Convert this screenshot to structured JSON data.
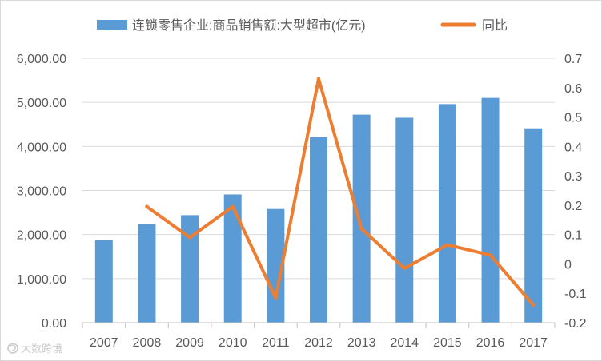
{
  "chart_data": {
    "type": "bar",
    "categories": [
      "2007",
      "2008",
      "2009",
      "2010",
      "2011",
      "2012",
      "2013",
      "2014",
      "2015",
      "2016",
      "2017"
    ],
    "series": [
      {
        "name": "连锁零售企业:商品销售额:大型超市(亿元)",
        "type": "bar",
        "axis": "left",
        "color": "#5b9bd5",
        "values": [
          1870,
          2240,
          2440,
          2910,
          2580,
          4210,
          4720,
          4650,
          4960,
          5100,
          4410
        ]
      },
      {
        "name": "同比",
        "type": "line",
        "axis": "right",
        "color": "#ed7d31",
        "values": [
          null,
          0.195,
          0.09,
          0.195,
          -0.115,
          0.63,
          0.12,
          -0.015,
          0.065,
          0.03,
          -0.14
        ]
      }
    ],
    "y_left": {
      "ylim": [
        0,
        6000
      ],
      "ticks": [
        0,
        1000,
        2000,
        3000,
        4000,
        5000,
        6000
      ],
      "tick_labels": [
        "0.00",
        "1,000.00",
        "2,000.00",
        "3,000.00",
        "4,000.00",
        "5,000.00",
        "6,000.00"
      ]
    },
    "y_right": {
      "ylim": [
        -0.2,
        0.7
      ],
      "ticks": [
        -0.2,
        -0.1,
        0,
        0.1,
        0.2,
        0.3,
        0.4,
        0.5,
        0.6,
        0.7
      ],
      "tick_labels": [
        "-0.2",
        "-0.1",
        "0",
        "0.1",
        "0.2",
        "0.3",
        "0.4",
        "0.5",
        "0.6",
        "0.7"
      ]
    },
    "title": "",
    "xlabel": "",
    "ylabel": "",
    "grid": true,
    "legend_position": "top"
  },
  "watermark": {
    "text": "大数跨境"
  }
}
